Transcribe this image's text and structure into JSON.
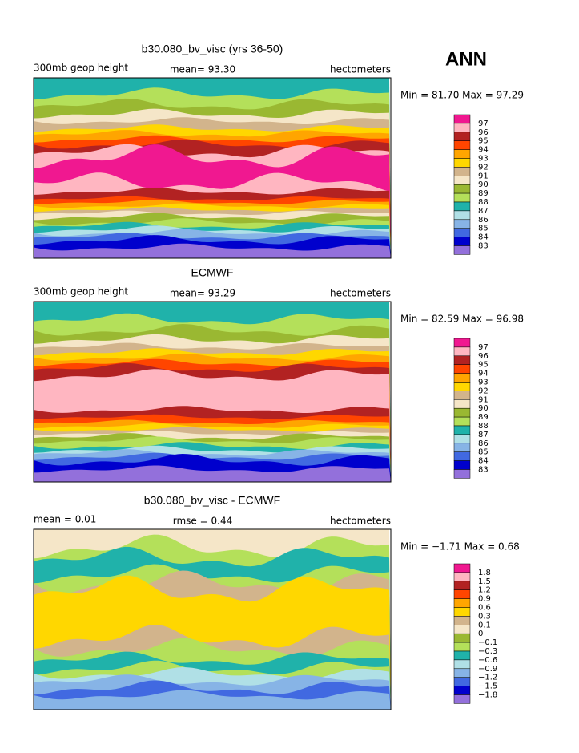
{
  "header": {
    "season": "ANN"
  },
  "panels": [
    {
      "title": "b30.080_bv_visc (yrs 36-50)",
      "left": "300mb geop height",
      "middle": "mean=  93.30",
      "right": "hectometers",
      "minmax": "Min =  81.70 Max =  97.29",
      "levels": [
        "97",
        "96",
        "95",
        "94",
        "93",
        "92",
        "91",
        "90",
        "89",
        "88",
        "87",
        "86",
        "85",
        "84",
        "83"
      ]
    },
    {
      "title": "ECMWF",
      "left": "300mb geop height",
      "middle": "mean= 93.29",
      "right": "hectometers",
      "minmax": "Min =  82.59 Max =  96.98",
      "levels": [
        "97",
        "96",
        "95",
        "94",
        "93",
        "92",
        "91",
        "90",
        "89",
        "88",
        "87",
        "86",
        "85",
        "84",
        "83"
      ]
    },
    {
      "title": "b30.080_bv_visc - ECMWF",
      "left": "mean =    0.01",
      "middle": "rmse =    0.44",
      "right": "hectometers",
      "minmax": "Min = −1.71 Max =    0.68",
      "levels": [
        "1.8",
        "1.5",
        "1.2",
        "0.9",
        "0.6",
        "0.3",
        "0.1",
        "0",
        "−0.1",
        "−0.3",
        "−0.6",
        "−0.9",
        "−1.2",
        "−1.5",
        "−1.8"
      ]
    }
  ],
  "colors": [
    "#f01890",
    "#ffb6c1",
    "#b22222",
    "#ff4500",
    "#ffa500",
    "#ffd700",
    "#d2b48c",
    "#f5e6c8",
    "#9ab832",
    "#b4e05a",
    "#20b2aa",
    "#b0e0e6",
    "#87b4e6",
    "#4169e1",
    "#0000cd",
    "#9370db"
  ]
}
